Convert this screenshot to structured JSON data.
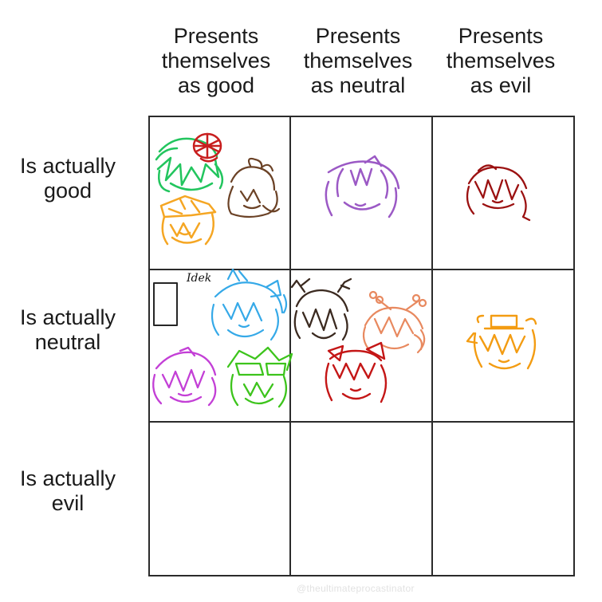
{
  "columns": [
    {
      "label": "Presents\nthemselves\nas good"
    },
    {
      "label": "Presents\nthemselves\nas neutral"
    },
    {
      "label": "Presents\nthemselves\nas evil"
    }
  ],
  "rows": [
    {
      "label": "Is actually\ngood"
    },
    {
      "label": "Is actually\nneutral"
    },
    {
      "label": "Is actually\nevil"
    }
  ],
  "cells": {
    "good_good": [
      {
        "icon": "green-haired-character-icon",
        "color": "#22c55e"
      },
      {
        "icon": "red-hat-character-icon",
        "color": "#c81e1e"
      },
      {
        "icon": "yellow-haired-character-icon",
        "color": "#f5a623"
      },
      {
        "icon": "brown-haired-character-icon",
        "color": "#6b4226"
      }
    ],
    "good_neutral": [
      {
        "icon": "purple-haired-character-icon",
        "color": "#9b59c5"
      }
    ],
    "good_evil": [
      {
        "icon": "dark-red-haired-character-icon",
        "color": "#9b1111"
      }
    ],
    "neutral_good": [
      {
        "icon": "black-phone-icon",
        "color": "#222222",
        "note": "Idek"
      },
      {
        "icon": "blue-haired-character-icon",
        "color": "#35a9e8"
      },
      {
        "icon": "magenta-haired-character-icon",
        "color": "#c33fd6"
      },
      {
        "icon": "green-goggles-character-icon",
        "color": "#3dc41c"
      }
    ],
    "neutral_neutral": [
      {
        "icon": "dark-brown-horned-character-icon",
        "color": "#3b2a20"
      },
      {
        "icon": "peach-bone-character-icon",
        "color": "#e8895f"
      },
      {
        "icon": "red-bow-character-icon",
        "color": "#c41616"
      }
    ],
    "neutral_evil": [
      {
        "icon": "orange-top-hat-character-icon",
        "color": "#f39c12"
      }
    ],
    "evil_good": [],
    "evil_neutral": [],
    "evil_evil": []
  },
  "watermark": "@theultimateprocastinator"
}
